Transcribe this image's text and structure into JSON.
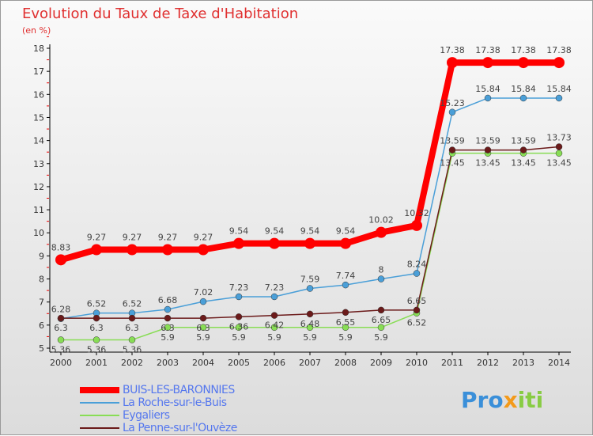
{
  "chart_data": {
    "type": "line",
    "title": "Evolution du Taux de Taxe d'Habitation",
    "subtitle": "(en %)",
    "x": [
      "2000",
      "2001",
      "2002",
      "2003",
      "2004",
      "2005",
      "2006",
      "2007",
      "2008",
      "2009",
      "2010",
      "2011",
      "2012",
      "2013",
      "2014"
    ],
    "ylim": [
      5,
      18
    ],
    "yticks": [
      5,
      6,
      7,
      8,
      9,
      10,
      11,
      12,
      13,
      14,
      15,
      16,
      17,
      18
    ],
    "grid": false,
    "legend_position": "bottom-left",
    "series": [
      {
        "name": "BUIS-LES-BARONNIES",
        "color": "#ff0000",
        "width": 8,
        "values": [
          8.83,
          9.27,
          9.27,
          9.27,
          9.27,
          9.54,
          9.54,
          9.54,
          9.54,
          10.02,
          10.32,
          17.38,
          17.38,
          17.38,
          17.38
        ]
      },
      {
        "name": "La Roche-sur-le-Buis",
        "color": "#4a9fd8",
        "width": 1.5,
        "values": [
          6.28,
          6.52,
          6.52,
          6.68,
          7.02,
          7.23,
          7.23,
          7.59,
          7.74,
          8,
          8.24,
          15.23,
          15.84,
          15.84,
          15.84
        ]
      },
      {
        "name": "Eygaliers",
        "color": "#88dd55",
        "width": 1.5,
        "values": [
          5.36,
          5.36,
          5.36,
          5.9,
          5.9,
          5.9,
          5.9,
          5.9,
          5.9,
          5.9,
          6.52,
          13.45,
          13.45,
          13.45,
          13.45
        ]
      },
      {
        "name": "La Penne-sur-l'Ouvèze",
        "color": "#6b1a1a",
        "width": 1.5,
        "values": [
          6.3,
          6.3,
          6.3,
          6.3,
          6.3,
          6.36,
          6.42,
          6.48,
          6.55,
          6.65,
          6.65,
          13.59,
          13.59,
          13.59,
          13.73
        ]
      }
    ]
  },
  "logo": {
    "text_a": "Pro",
    "text_b": "x",
    "text_c": "iti"
  }
}
